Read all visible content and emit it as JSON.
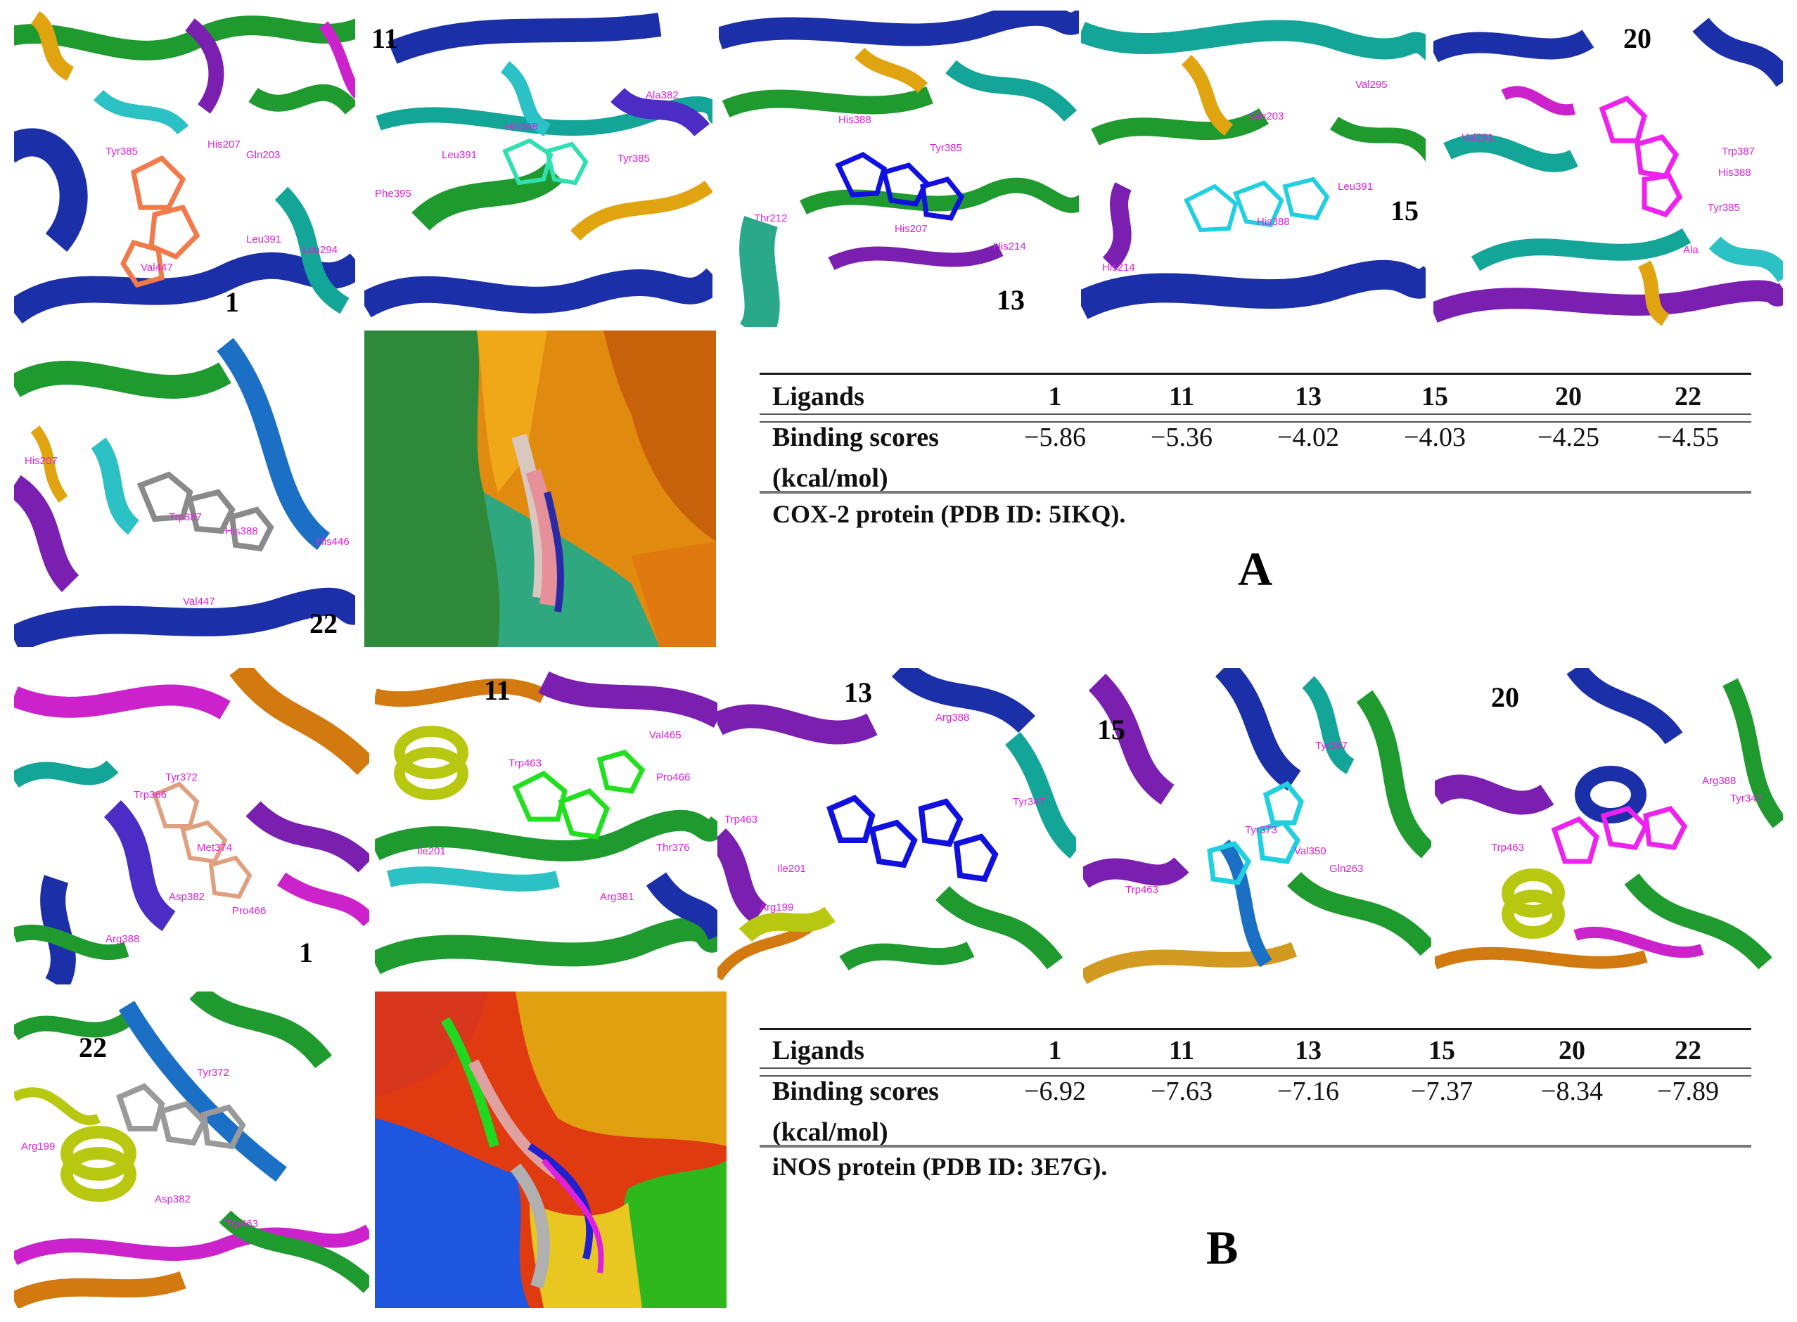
{
  "figure": {
    "section_a": {
      "letter": "A",
      "panels": [
        {
          "label": "1",
          "residues": [
            "Tyr385",
            "His207",
            "Leu391",
            "Leu294",
            "Val447",
            "Gln203"
          ]
        },
        {
          "label": "11",
          "residues": [
            "His388",
            "Tyr385",
            "Ala382",
            "Phe395",
            "Leu391"
          ]
        },
        {
          "label": "13",
          "residues": [
            "His388",
            "Tyr385",
            "His207",
            "Thr212",
            "His214"
          ]
        },
        {
          "label": "15",
          "residues": [
            "Val295",
            "Gln203",
            "Leu391",
            "His388",
            "His214"
          ]
        },
        {
          "label": "20",
          "residues": [
            "Trp387",
            "His388",
            "Tyr385",
            "Val291",
            "Ala"
          ]
        },
        {
          "label": "22",
          "residues": [
            "His207",
            "Trp387",
            "His388",
            "Val447",
            "His446"
          ]
        }
      ],
      "table": {
        "col_header": "Ligands",
        "ligands": [
          "1",
          "11",
          "13",
          "15",
          "20",
          "22"
        ],
        "row_label_line1": "Binding scores",
        "row_label_line2": "(kcal/mol)",
        "scores": [
          "−5.86",
          "−5.36",
          "−4.02",
          "−4.03",
          "−4.25",
          "−4.55"
        ],
        "caption": "COX-2 protein  (PDB ID: 5IKQ)."
      }
    },
    "section_b": {
      "letter": "B",
      "panels": [
        {
          "label": "1",
          "residues": [
            "Trp366",
            "Tyr372",
            "Met374",
            "Arg388",
            "Pro466",
            "Asp382"
          ]
        },
        {
          "label": "11",
          "residues": [
            "Trp463",
            "Val465",
            "Pro466",
            "Thr376",
            "Arg381",
            "Ile201"
          ]
        },
        {
          "label": "13",
          "residues": [
            "Arg388",
            "Tyr347",
            "Trp463",
            "Ile201",
            "Arg199"
          ]
        },
        {
          "label": "15",
          "residues": [
            "Tyr347",
            "Tyr373",
            "Trp463",
            "Gln263",
            "Val350"
          ]
        },
        {
          "label": "20",
          "residues": [
            "Arg388",
            "Trp463",
            "Tyr347"
          ]
        },
        {
          "label": "22",
          "residues": [
            "Arg199",
            "Tyr372",
            "Trp463",
            "Asp382"
          ]
        }
      ],
      "table": {
        "col_header": "Ligands",
        "ligands": [
          "1",
          "11",
          "13",
          "15",
          "20",
          "22"
        ],
        "row_label_line1": "Binding scores",
        "row_label_line2": "(kcal/mol)",
        "scores": [
          "−6.92",
          "−7.63",
          "−7.16",
          "−7.37",
          "−8.34",
          "−7.89"
        ],
        "caption": "iNOS protein  (PDB ID: 3E7G)."
      }
    }
  }
}
